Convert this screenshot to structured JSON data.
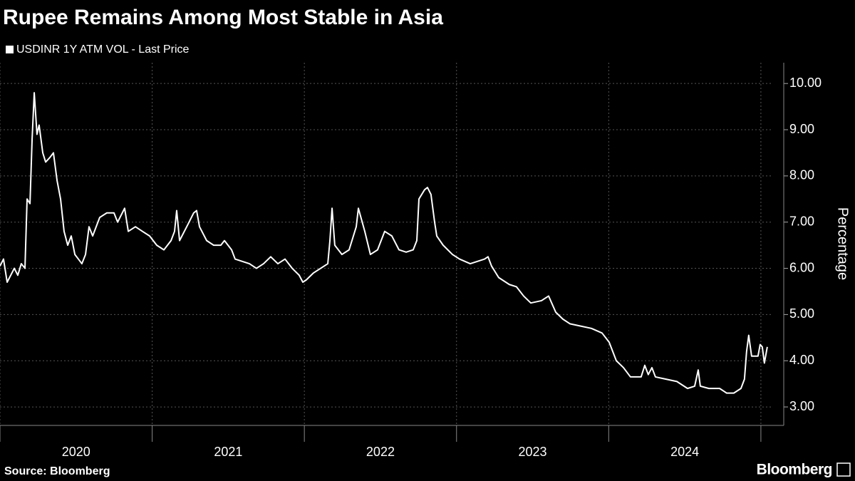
{
  "chart_data": {
    "type": "line",
    "title": "Rupee Remains Among Most Stable in Asia",
    "ylabel": "Percentage",
    "source": "Source: Bloomberg",
    "brand": "Bloomberg",
    "categories": [
      "2020",
      "2021",
      "2022",
      "2023",
      "2024"
    ],
    "xlim": [
      2020,
      2025.08
    ],
    "xticks": [
      2020,
      2021,
      2022,
      2023,
      2024,
      2025
    ],
    "ylim": [
      2.6,
      10.45
    ],
    "yticks": [
      {
        "value": 3,
        "label": "3.00"
      },
      {
        "value": 4,
        "label": "4.00"
      },
      {
        "value": 5,
        "label": "5.00"
      },
      {
        "value": 6,
        "label": "6.00"
      },
      {
        "value": 7,
        "label": "7.00"
      },
      {
        "value": 8,
        "label": "8.00"
      },
      {
        "value": 9,
        "label": "9.00"
      },
      {
        "value": 10,
        "label": "10.00"
      }
    ],
    "grid": true,
    "x": [
      2020.0,
      2020.023,
      2020.047,
      2020.094,
      2020.117,
      2020.14,
      2020.164,
      2020.178,
      2020.197,
      2020.211,
      2020.225,
      2020.243,
      2020.257,
      2020.281,
      2020.3,
      2020.328,
      2020.351,
      2020.375,
      2020.398,
      2020.421,
      2020.445,
      2020.468,
      2020.492,
      2020.515,
      2020.538,
      2020.562,
      2020.585,
      2020.609,
      2020.655,
      2020.702,
      2020.749,
      2020.773,
      2020.819,
      2020.843,
      2020.89,
      2020.936,
      2020.983,
      2021.03,
      2021.077,
      2021.124,
      2021.147,
      2021.161,
      2021.18,
      2021.227,
      2021.273,
      2021.292,
      2021.311,
      2021.358,
      2021.404,
      2021.451,
      2021.475,
      2021.522,
      2021.545,
      2021.592,
      2021.639,
      2021.685,
      2021.732,
      2021.779,
      2021.826,
      2021.873,
      2021.92,
      2021.966,
      2021.99,
      2022.013,
      2022.06,
      2022.107,
      2022.154,
      2022.168,
      2022.182,
      2022.2,
      2022.247,
      2022.294,
      2022.341,
      2022.355,
      2022.397,
      2022.434,
      2022.481,
      2022.528,
      2022.575,
      2022.622,
      2022.669,
      2022.715,
      2022.739,
      2022.753,
      2022.79,
      2022.809,
      2022.832,
      2022.856,
      2022.87,
      2022.912,
      2022.973,
      2023.02,
      2023.09,
      2023.184,
      2023.207,
      2023.23,
      2023.277,
      2023.347,
      2023.394,
      2023.441,
      2023.488,
      2023.558,
      2023.605,
      2023.652,
      2023.699,
      2023.745,
      2023.816,
      2023.886,
      2023.956,
      2024.003,
      2024.05,
      2024.097,
      2024.143,
      2024.213,
      2024.237,
      2024.26,
      2024.284,
      2024.307,
      2024.377,
      2024.448,
      2024.518,
      2024.565,
      2024.588,
      2024.602,
      2024.658,
      2024.729,
      2024.775,
      2024.822,
      2024.869,
      2024.892,
      2024.906,
      2024.92,
      2024.939,
      2024.981,
      2024.995,
      2025.009,
      2025.023,
      2025.042
    ],
    "series": [
      {
        "name": "USDINR 1Y ATM VOL - Last Price",
        "color": "#ffffff",
        "values": [
          6.05,
          6.2,
          5.7,
          6.0,
          5.85,
          6.1,
          6.0,
          7.5,
          7.4,
          8.8,
          9.8,
          8.9,
          9.1,
          8.5,
          8.3,
          8.4,
          8.5,
          7.9,
          7.5,
          6.8,
          6.5,
          6.7,
          6.3,
          6.2,
          6.1,
          6.3,
          6.9,
          6.7,
          7.1,
          7.2,
          7.2,
          7.0,
          7.3,
          6.8,
          6.9,
          6.8,
          6.7,
          6.5,
          6.4,
          6.6,
          6.8,
          7.25,
          6.6,
          6.9,
          7.2,
          7.25,
          6.9,
          6.6,
          6.5,
          6.5,
          6.6,
          6.4,
          6.2,
          6.15,
          6.1,
          6.0,
          6.1,
          6.25,
          6.1,
          6.2,
          6.0,
          5.85,
          5.7,
          5.75,
          5.9,
          6.0,
          6.1,
          6.6,
          7.3,
          6.5,
          6.3,
          6.4,
          6.9,
          7.3,
          6.8,
          6.3,
          6.4,
          6.8,
          6.7,
          6.4,
          6.35,
          6.4,
          6.6,
          7.5,
          7.7,
          7.75,
          7.6,
          7.0,
          6.7,
          6.5,
          6.3,
          6.2,
          6.1,
          6.2,
          6.25,
          6.05,
          5.8,
          5.65,
          5.6,
          5.4,
          5.25,
          5.3,
          5.4,
          5.05,
          4.9,
          4.8,
          4.75,
          4.7,
          4.6,
          4.4,
          4.0,
          3.85,
          3.65,
          3.65,
          3.9,
          3.7,
          3.85,
          3.65,
          3.6,
          3.55,
          3.4,
          3.45,
          3.8,
          3.45,
          3.4,
          3.4,
          3.3,
          3.3,
          3.4,
          3.6,
          4.2,
          4.55,
          4.1,
          4.1,
          4.35,
          4.3,
          3.95,
          4.3
        ]
      }
    ]
  }
}
